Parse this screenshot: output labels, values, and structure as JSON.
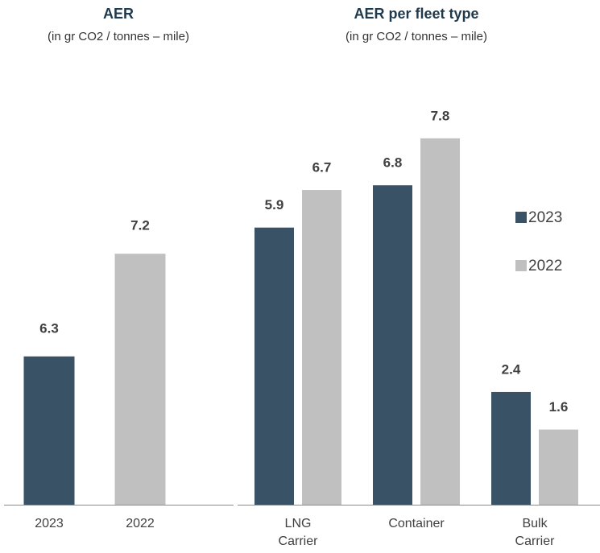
{
  "chart_data": [
    {
      "type": "bar",
      "title": "AER",
      "subtitle": "(in gr CO2 / tonnes – mile)",
      "categories": [
        "2023",
        "2022"
      ],
      "values": [
        6.3,
        7.2
      ],
      "colors": [
        "#3a5266",
        "#c0c0c0"
      ],
      "ylim": [
        5,
        8.5
      ]
    },
    {
      "type": "grouped_bar",
      "title": "AER per fleet type",
      "subtitle": "(in gr CO2 / tonnes – mile)",
      "categories": [
        "LNG Carrier",
        "Container",
        "Bulk Carrier"
      ],
      "series": [
        {
          "name": "2023",
          "color": "#3a5266",
          "values": [
            5.9,
            6.8,
            2.4
          ]
        },
        {
          "name": "2022",
          "color": "#c0c0c0",
          "values": [
            6.7,
            7.8,
            1.6
          ]
        }
      ],
      "ylim": [
        0,
        8.5
      ],
      "legend": "right"
    }
  ]
}
